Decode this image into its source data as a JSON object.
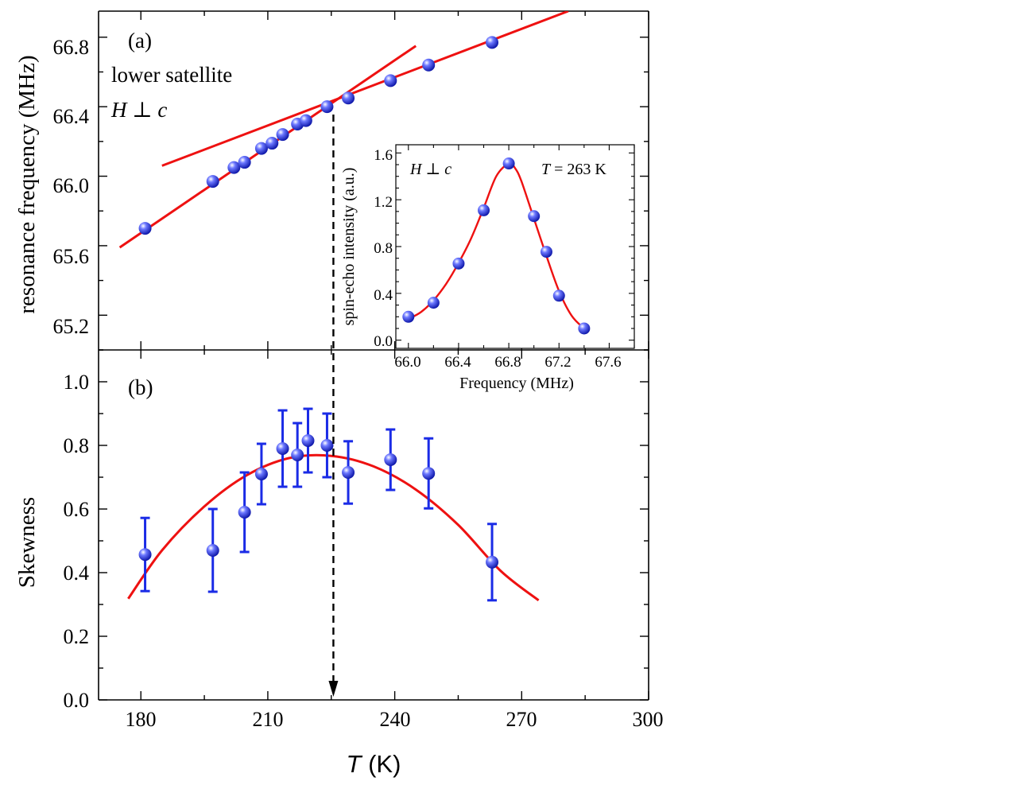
{
  "colors": {
    "fit": "#ee1111",
    "marker": "#1f2bd6",
    "error": "#1a2be6",
    "axis": "#000000",
    "arrow": "#000000"
  },
  "panel_a": {
    "label": "(a)",
    "annotation_line1": "lower satellite",
    "annotation_h": "H",
    "annotation_perp": "⊥",
    "annotation_c": "c",
    "ylabel": "resonance frequency (MHz)",
    "yticks": [
      "65.2",
      "65.6",
      "66.0",
      "66.4",
      "66.8"
    ]
  },
  "panel_b": {
    "label": "(b)",
    "ylabel": "Skewness",
    "yticks": [
      "0.0",
      "0.2",
      "0.4",
      "0.6",
      "0.8",
      "1.0"
    ],
    "xticks": [
      "180",
      "210",
      "240",
      "270",
      "300"
    ],
    "xlabel_italic": "T",
    "xlabel_unit": "(K)"
  },
  "inset": {
    "annotation_h": "H",
    "annotation_perp": "⊥",
    "annotation_c": "c",
    "annotation_t": "T",
    "annotation_t_value": "= 263 K",
    "xlabel": "Frequency (MHz)",
    "ylabel": "spin-echo intensity (a.u.)",
    "xticks": [
      "66.0",
      "66.4",
      "66.8",
      "67.2",
      "67.6"
    ],
    "yticks": [
      "0.0",
      "0.4",
      "0.8",
      "1.2",
      "1.6"
    ]
  },
  "chart_data": [
    {
      "panel": "a",
      "type": "scatter",
      "title": "",
      "xlabel": "",
      "ylabel": "resonance frequency (MHz)",
      "xlim": [
        170,
        300
      ],
      "ylim": [
        65.0,
        66.95
      ],
      "points": {
        "x": [
          181,
          197,
          202,
          204.5,
          208.5,
          211,
          213.5,
          217,
          219,
          224,
          229,
          239,
          248,
          263
        ],
        "y": [
          65.7,
          65.97,
          66.05,
          66.08,
          66.16,
          66.19,
          66.24,
          66.3,
          66.32,
          66.4,
          66.45,
          66.55,
          66.64,
          66.77
        ]
      },
      "fits": [
        {
          "x": [
            175,
            245
          ],
          "y": [
            65.59,
            66.75
          ]
        },
        {
          "x": [
            185,
            281
          ],
          "y": [
            66.06,
            66.95
          ]
        }
      ]
    },
    {
      "panel": "b",
      "type": "scatter",
      "title": "",
      "xlabel": "T (K)",
      "ylabel": "Skewness",
      "xlim": [
        170,
        300
      ],
      "ylim": [
        0.0,
        1.1
      ],
      "points": {
        "x": [
          181,
          197,
          204.5,
          208.5,
          213.5,
          217,
          219.5,
          224,
          229,
          239,
          248,
          263
        ],
        "y": [
          0.457,
          0.47,
          0.59,
          0.71,
          0.79,
          0.77,
          0.815,
          0.8,
          0.715,
          0.755,
          0.712,
          0.433
        ],
        "err": [
          0.115,
          0.13,
          0.125,
          0.095,
          0.12,
          0.1,
          0.1,
          0.1,
          0.098,
          0.095,
          0.11,
          0.12
        ]
      },
      "fit": {
        "x": [
          177,
          185,
          195,
          205,
          215,
          225,
          235,
          245,
          255,
          265,
          274
        ],
        "y": [
          0.318,
          0.47,
          0.608,
          0.706,
          0.76,
          0.767,
          0.734,
          0.661,
          0.55,
          0.406,
          0.313
        ]
      },
      "marker_temperature": 225.5
    },
    {
      "panel": "inset",
      "type": "scatter",
      "title": "",
      "xlabel": "Frequency (MHz)",
      "ylabel": "spin-echo intensity (a.u.)",
      "xlim": [
        65.9,
        67.8
      ],
      "ylim": [
        -0.07,
        1.67
      ],
      "points": {
        "x": [
          66.0,
          66.2,
          66.4,
          66.6,
          66.8,
          67.0,
          67.1,
          67.2,
          67.4
        ],
        "y": [
          0.2,
          0.32,
          0.655,
          1.11,
          1.51,
          1.06,
          0.755,
          0.38,
          0.1
        ]
      },
      "fit": {
        "x": [
          66.0,
          66.1,
          66.2,
          66.3,
          66.4,
          66.5,
          66.6,
          66.7,
          66.8,
          66.85,
          66.9,
          67.0,
          67.1,
          67.2,
          67.3,
          67.4
        ],
        "y": [
          0.18,
          0.24,
          0.34,
          0.48,
          0.66,
          0.87,
          1.13,
          1.4,
          1.51,
          1.47,
          1.36,
          1.04,
          0.72,
          0.42,
          0.21,
          0.1
        ]
      }
    }
  ]
}
